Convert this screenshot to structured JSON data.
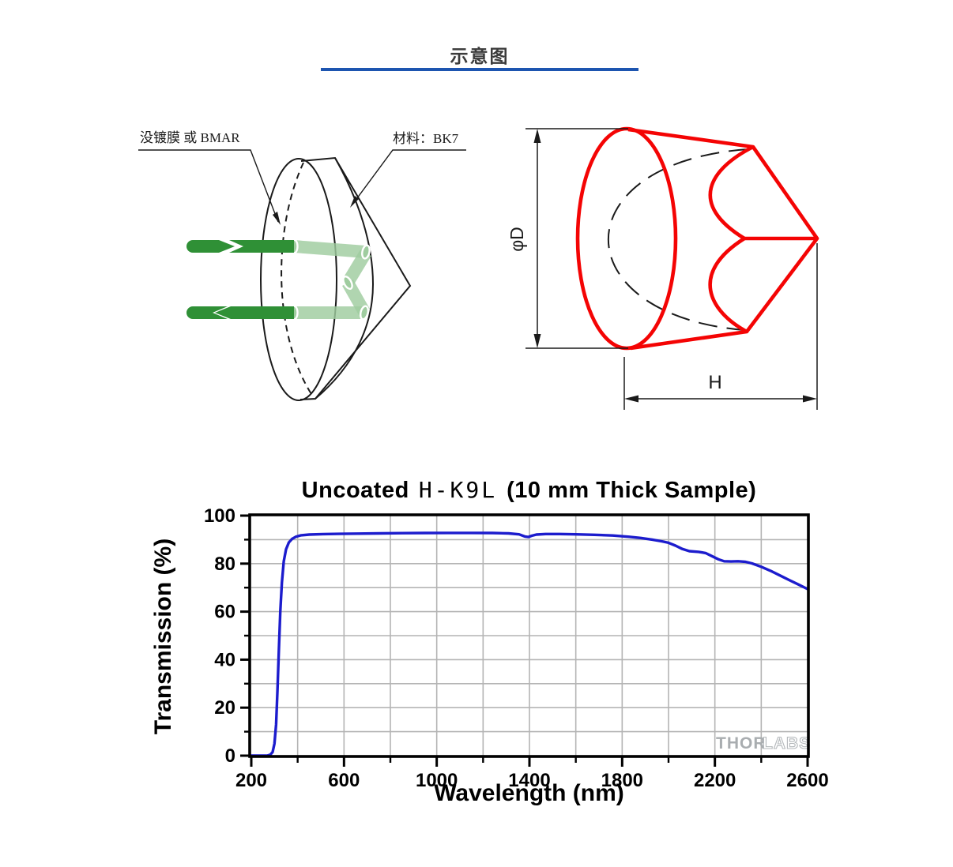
{
  "page": {
    "title": "示意图"
  },
  "left_diagram": {
    "label_coating": "没镀膜 或 BMAR",
    "label_material": "材料：BK7"
  },
  "right_diagram": {
    "dim_diameter": "φD",
    "dim_height": "H"
  },
  "colors": {
    "header_underline": "#1d55b0",
    "prism_outline_red": "#f40404",
    "beam_dark_green": "#2f9036",
    "beam_light_green": "#9fcc9f",
    "curve_blue": "#1c1ccd",
    "gridline_gray": "#b4b4b4"
  },
  "chart_data": {
    "type": "line",
    "title_parts": {
      "prefix": "Uncoated",
      "glass": "H-K9L",
      "suffix": "(10 mm Thick Sample)"
    },
    "xlabel": "Wavelength (nm)",
    "ylabel": "Transmission (%)",
    "xlim": [
      200,
      2600
    ],
    "ylim": [
      0,
      100
    ],
    "x_major_ticks": [
      200,
      600,
      1000,
      1400,
      1800,
      2200,
      2600
    ],
    "y_major_ticks": [
      0,
      20,
      40,
      60,
      80,
      100
    ],
    "grid": true,
    "legend": "none",
    "watermark": {
      "part1": "THOR",
      "part2": "LABS"
    },
    "series": [
      {
        "name": "Uncoated H-K9L, 10 mm thick",
        "color": "#1c1ccd",
        "points": [
          [
            200,
            0
          ],
          [
            268,
            0
          ],
          [
            282,
            0.4
          ],
          [
            292,
            1.5
          ],
          [
            300,
            5
          ],
          [
            307,
            13
          ],
          [
            313,
            27
          ],
          [
            319,
            44
          ],
          [
            325,
            60
          ],
          [
            332,
            72
          ],
          [
            340,
            81
          ],
          [
            350,
            86
          ],
          [
            362,
            88.8
          ],
          [
            376,
            90.3
          ],
          [
            392,
            91.2
          ],
          [
            415,
            91.8
          ],
          [
            450,
            92.1
          ],
          [
            510,
            92.3
          ],
          [
            580,
            92.4
          ],
          [
            660,
            92.5
          ],
          [
            750,
            92.6
          ],
          [
            850,
            92.7
          ],
          [
            950,
            92.75
          ],
          [
            1050,
            92.8
          ],
          [
            1150,
            92.8
          ],
          [
            1240,
            92.75
          ],
          [
            1310,
            92.6
          ],
          [
            1355,
            92.2
          ],
          [
            1380,
            91.3
          ],
          [
            1395,
            91.1
          ],
          [
            1410,
            91.6
          ],
          [
            1430,
            92.1
          ],
          [
            1470,
            92.35
          ],
          [
            1530,
            92.35
          ],
          [
            1600,
            92.2
          ],
          [
            1680,
            92.0
          ],
          [
            1760,
            91.7
          ],
          [
            1830,
            91.2
          ],
          [
            1880,
            90.7
          ],
          [
            1930,
            90.0
          ],
          [
            1970,
            89.3
          ],
          [
            2000,
            88.7
          ],
          [
            2030,
            87.5
          ],
          [
            2060,
            86.1
          ],
          [
            2090,
            85.2
          ],
          [
            2130,
            84.9
          ],
          [
            2160,
            84.4
          ],
          [
            2190,
            83.0
          ],
          [
            2215,
            81.8
          ],
          [
            2240,
            81.0
          ],
          [
            2270,
            80.9
          ],
          [
            2300,
            81.0
          ],
          [
            2330,
            80.8
          ],
          [
            2360,
            80.1
          ],
          [
            2400,
            78.7
          ],
          [
            2440,
            77.0
          ],
          [
            2480,
            75.1
          ],
          [
            2520,
            73.2
          ],
          [
            2560,
            71.3
          ],
          [
            2600,
            69.4
          ]
        ]
      }
    ]
  }
}
